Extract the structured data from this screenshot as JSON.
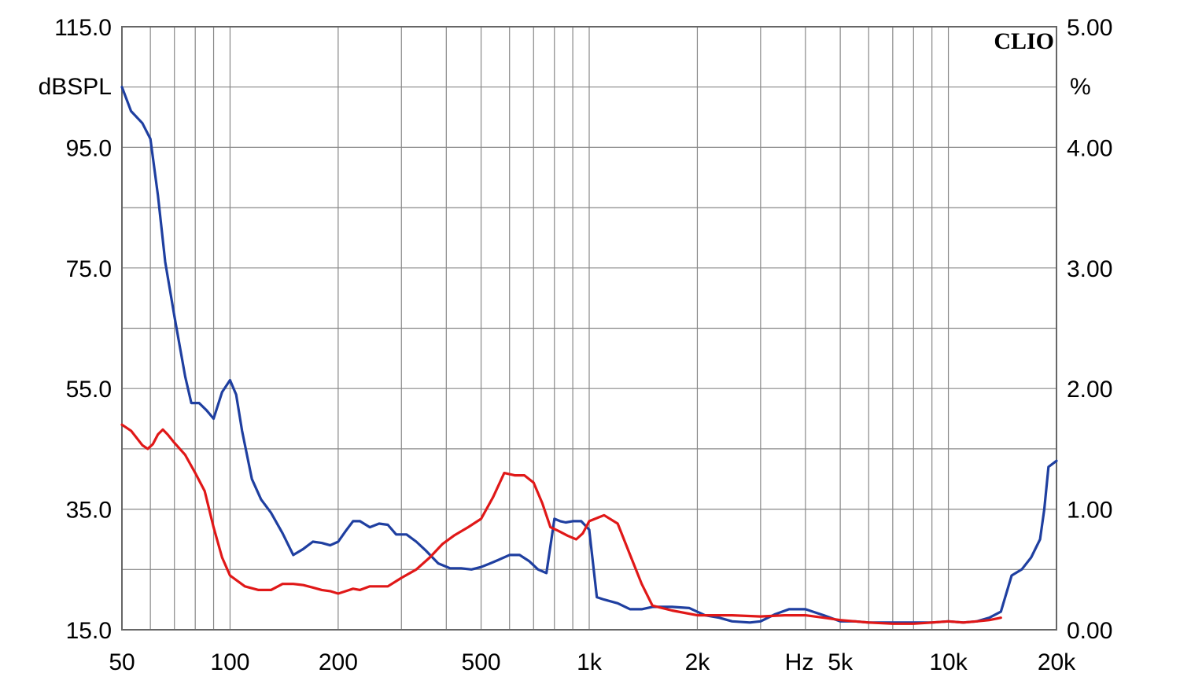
{
  "chart_data": {
    "type": "line",
    "brand": "CLIO",
    "y_left_unit": "dBSPL",
    "y_right_unit": "%",
    "x_unit": "Hz",
    "x_scale": "log",
    "xlim": [
      50,
      20000
    ],
    "ylim_left": [
      15,
      115
    ],
    "ylim_right": [
      0,
      5
    ],
    "grid": true,
    "colors": {
      "blue": "#1f3fa0",
      "red": "#e01818",
      "grid": "#888888"
    },
    "x_ticks": [
      {
        "value": 50,
        "label": "50"
      },
      {
        "value": 100,
        "label": "100"
      },
      {
        "value": 200,
        "label": "200"
      },
      {
        "value": 500,
        "label": "500"
      },
      {
        "value": 1000,
        "label": "1k"
      },
      {
        "value": 2000,
        "label": "2k"
      },
      {
        "value": 5000,
        "label": "5k"
      },
      {
        "value": 10000,
        "label": "10k"
      },
      {
        "value": 20000,
        "label": "20k"
      }
    ],
    "y_left_ticks": [
      {
        "value": 115,
        "label": "115.0"
      },
      {
        "value": 95,
        "label": "95.0"
      },
      {
        "value": 75,
        "label": "75.0"
      },
      {
        "value": 55,
        "label": "55.0"
      },
      {
        "value": 35,
        "label": "35.0"
      },
      {
        "value": 15,
        "label": "15.0"
      }
    ],
    "y_right_ticks": [
      {
        "value": 5,
        "label": "5.00"
      },
      {
        "value": 4,
        "label": "4.00"
      },
      {
        "value": 3,
        "label": "3.00"
      },
      {
        "value": 2,
        "label": "2.00"
      },
      {
        "value": 1,
        "label": "1.00"
      },
      {
        "value": 0,
        "label": "0.00"
      }
    ],
    "series": [
      {
        "color": "#1f3fa0",
        "axis": "right",
        "x": [
          50,
          53,
          57,
          60,
          63,
          66,
          70,
          75,
          78,
          82,
          86,
          90,
          95,
          100,
          104,
          108,
          115,
          122,
          130,
          140,
          150,
          160,
          170,
          180,
          190,
          200,
          210,
          220,
          230,
          245,
          260,
          275,
          290,
          310,
          330,
          350,
          380,
          410,
          440,
          470,
          500,
          530,
          560,
          600,
          640,
          680,
          720,
          760,
          800,
          830,
          860,
          900,
          950,
          1000,
          1050,
          1100,
          1200,
          1300,
          1400,
          1500,
          1700,
          1900,
          2100,
          2300,
          2500,
          2800,
          3000,
          3300,
          3600,
          4000,
          4500,
          5000,
          5500,
          6000,
          7000,
          8000,
          9000,
          10000,
          11000,
          12000,
          13000,
          14000,
          15000,
          16000,
          17000,
          18000,
          18500,
          19000,
          20000
        ],
        "values": [
          4.5,
          4.3,
          4.2,
          4.07,
          3.6,
          3.05,
          2.6,
          2.1,
          1.88,
          1.88,
          1.82,
          1.75,
          1.97,
          2.07,
          1.95,
          1.65,
          1.25,
          1.08,
          0.97,
          0.8,
          0.62,
          0.67,
          0.73,
          0.72,
          0.7,
          0.73,
          0.82,
          0.9,
          0.9,
          0.85,
          0.88,
          0.87,
          0.79,
          0.79,
          0.73,
          0.66,
          0.55,
          0.51,
          0.51,
          0.5,
          0.52,
          0.55,
          0.58,
          0.62,
          0.62,
          0.57,
          0.5,
          0.47,
          0.92,
          0.9,
          0.89,
          0.9,
          0.9,
          0.83,
          0.27,
          0.25,
          0.22,
          0.17,
          0.17,
          0.19,
          0.19,
          0.18,
          0.12,
          0.1,
          0.07,
          0.06,
          0.07,
          0.13,
          0.17,
          0.17,
          0.12,
          0.07,
          0.07,
          0.06,
          0.06,
          0.06,
          0.06,
          0.07,
          0.06,
          0.07,
          0.1,
          0.15,
          0.45,
          0.5,
          0.6,
          0.75,
          1.0,
          1.35,
          1.4
        ]
      },
      {
        "color": "#e01818",
        "axis": "right",
        "x": [
          50,
          53,
          57,
          59,
          61,
          63,
          65,
          67,
          70,
          75,
          80,
          85,
          90,
          95,
          100,
          110,
          120,
          130,
          140,
          150,
          160,
          170,
          180,
          190,
          200,
          210,
          220,
          230,
          245,
          260,
          275,
          300,
          330,
          360,
          390,
          420,
          460,
          500,
          540,
          580,
          620,
          660,
          700,
          740,
          780,
          820,
          870,
          920,
          960,
          1000,
          1100,
          1200,
          1300,
          1400,
          1500,
          1700,
          2000,
          2500,
          3000,
          3500,
          4000,
          4500,
          5000,
          6000,
          7000,
          8000,
          9000,
          10000,
          11000,
          12000,
          13000,
          14000
        ],
        "values": [
          1.7,
          1.65,
          1.53,
          1.5,
          1.54,
          1.62,
          1.66,
          1.62,
          1.55,
          1.45,
          1.3,
          1.15,
          0.85,
          0.6,
          0.45,
          0.36,
          0.33,
          0.33,
          0.38,
          0.38,
          0.37,
          0.35,
          0.33,
          0.32,
          0.3,
          0.32,
          0.34,
          0.33,
          0.36,
          0.36,
          0.36,
          0.43,
          0.5,
          0.6,
          0.71,
          0.78,
          0.85,
          0.92,
          1.1,
          1.3,
          1.28,
          1.28,
          1.22,
          1.05,
          0.85,
          0.82,
          0.78,
          0.75,
          0.8,
          0.9,
          0.95,
          0.88,
          0.62,
          0.38,
          0.2,
          0.16,
          0.12,
          0.12,
          0.11,
          0.12,
          0.12,
          0.1,
          0.08,
          0.06,
          0.05,
          0.05,
          0.06,
          0.07,
          0.06,
          0.07,
          0.08,
          0.1
        ]
      }
    ]
  }
}
